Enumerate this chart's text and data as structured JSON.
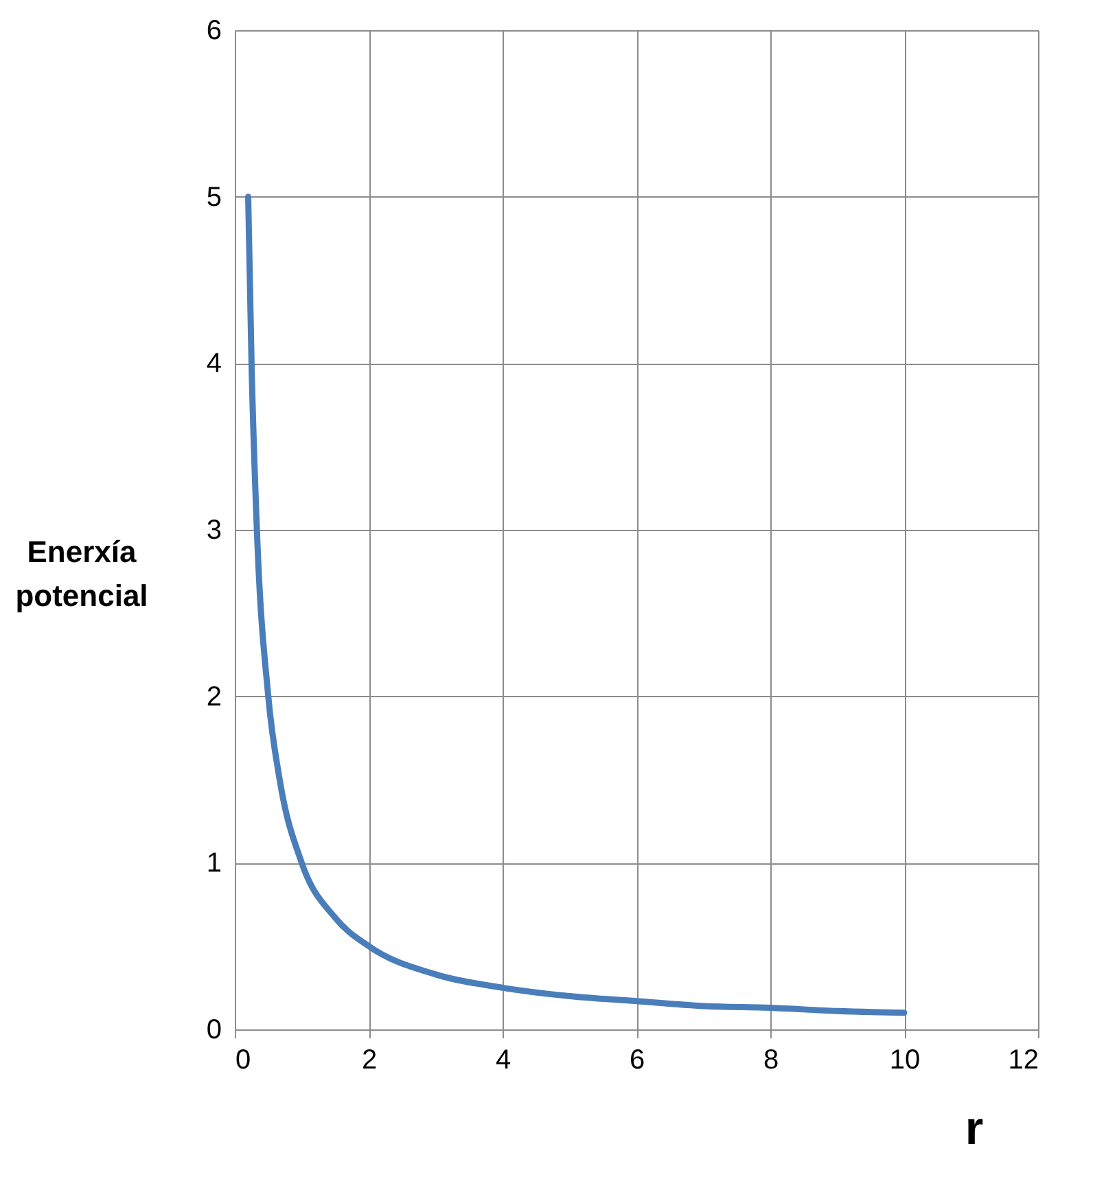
{
  "chart_data": {
    "type": "line",
    "xlabel": "r",
    "ylabel": "Enerxía potencial",
    "x": [
      0.2,
      0.25,
      0.33,
      0.5,
      0.67,
      1,
      1.5,
      2,
      3,
      4,
      5,
      6,
      7,
      8,
      9,
      10
    ],
    "series": [
      {
        "color": "#4a7ebb",
        "values": [
          5,
          4,
          3,
          2,
          1.5,
          1,
          0.67,
          0.5,
          0.33,
          0.25,
          0.2,
          0.17,
          0.14,
          0.13,
          0.11,
          0.1
        ]
      }
    ],
    "xlim": [
      0,
      12
    ],
    "xticks": [
      0,
      2,
      4,
      6,
      8,
      10,
      12
    ],
    "ylim": [
      0,
      6
    ],
    "yticks": [
      0,
      1,
      2,
      3,
      4,
      5,
      6
    ],
    "grid": true,
    "marker": "none",
    "line_style": "solid"
  }
}
